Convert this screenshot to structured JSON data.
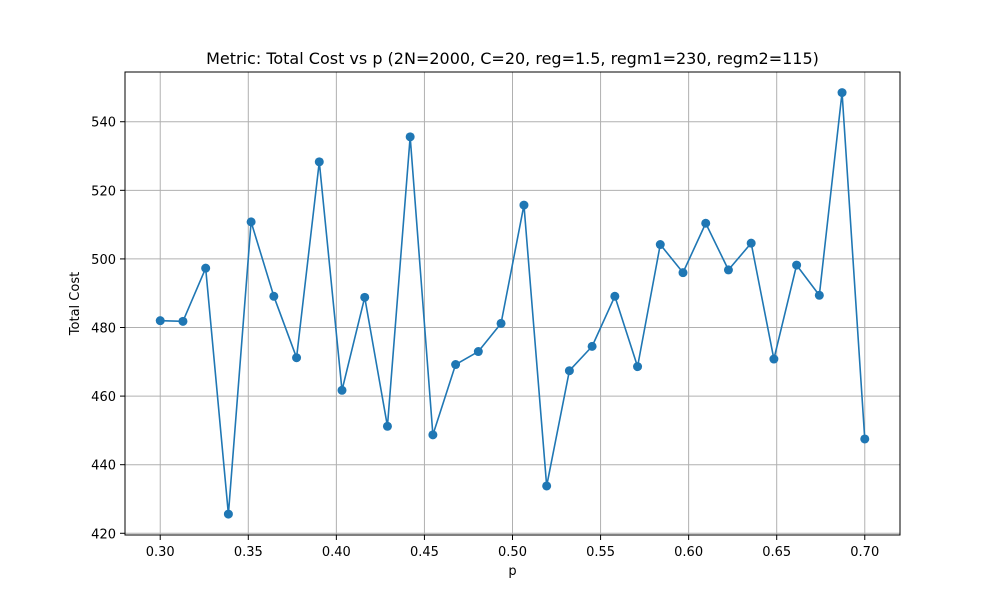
{
  "chart_data": {
    "type": "line",
    "title": "Metric: Total Cost vs p (2N=2000, C=20, reg=1.5, regm1=230, regm2=115)",
    "xlabel": "p",
    "ylabel": "Total Cost",
    "xlim": [
      0.28,
      0.72
    ],
    "ylim": [
      419.5,
      554.5
    ],
    "xticks": [
      0.3,
      0.35,
      0.4,
      0.45,
      0.5,
      0.55,
      0.6,
      0.65,
      0.7
    ],
    "xtick_labels": [
      "0.30",
      "0.35",
      "0.40",
      "0.45",
      "0.50",
      "0.55",
      "0.60",
      "0.65",
      "0.70"
    ],
    "yticks": [
      420,
      440,
      460,
      480,
      500,
      520,
      540
    ],
    "ytick_labels": [
      "420",
      "440",
      "460",
      "480",
      "500",
      "520",
      "540"
    ],
    "grid": true,
    "color": "#1f77b4",
    "marker": "circle",
    "series": [
      {
        "x": [
          0.3,
          0.3129,
          0.3258,
          0.3387,
          0.3516,
          0.3645,
          0.3774,
          0.3903,
          0.4032,
          0.4161,
          0.429,
          0.4419,
          0.4548,
          0.4677,
          0.4806,
          0.4935,
          0.5065,
          0.5194,
          0.5323,
          0.5452,
          0.5581,
          0.571,
          0.5839,
          0.5968,
          0.6097,
          0.6226,
          0.6355,
          0.6484,
          0.6613,
          0.6742,
          0.6871,
          0.7
        ],
        "y": [
          482.0,
          481.8,
          497.3,
          425.6,
          510.8,
          489.1,
          471.2,
          528.3,
          461.7,
          488.8,
          451.2,
          535.6,
          448.7,
          469.2,
          473.0,
          481.2,
          515.7,
          433.8,
          467.4,
          474.5,
          489.1,
          468.6,
          504.2,
          496.0,
          510.4,
          496.8,
          504.6,
          470.8,
          498.2,
          489.4,
          548.5,
          447.5
        ]
      }
    ]
  }
}
